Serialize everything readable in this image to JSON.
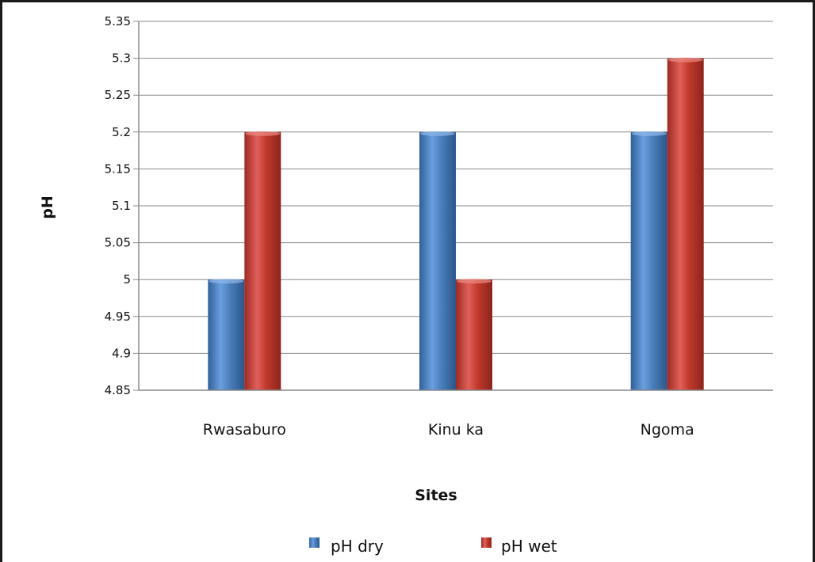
{
  "chart_data": {
    "type": "bar",
    "categories": [
      "Rwasaburo",
      "Kinu ka",
      "Ngoma"
    ],
    "series": [
      {
        "name": "pH dry",
        "values": [
          5.0,
          5.2,
          5.2
        ],
        "color": "#4a7ebb"
      },
      {
        "name": "pH wet",
        "values": [
          5.2,
          5.0,
          5.3
        ],
        "color": "#c0392b"
      }
    ],
    "xlabel": "Sites",
    "ylabel": "pH",
    "ylim": [
      4.85,
      5.35
    ],
    "yticks": [
      "5.35",
      "5.3",
      "5.25",
      "5.2",
      "5.15",
      "5.1",
      "5.05",
      "5",
      "4.95",
      "4.9",
      "4.85"
    ],
    "grid": true,
    "legend_position": "bottom",
    "legend_labels": [
      "pH dry",
      "pH wet"
    ]
  }
}
